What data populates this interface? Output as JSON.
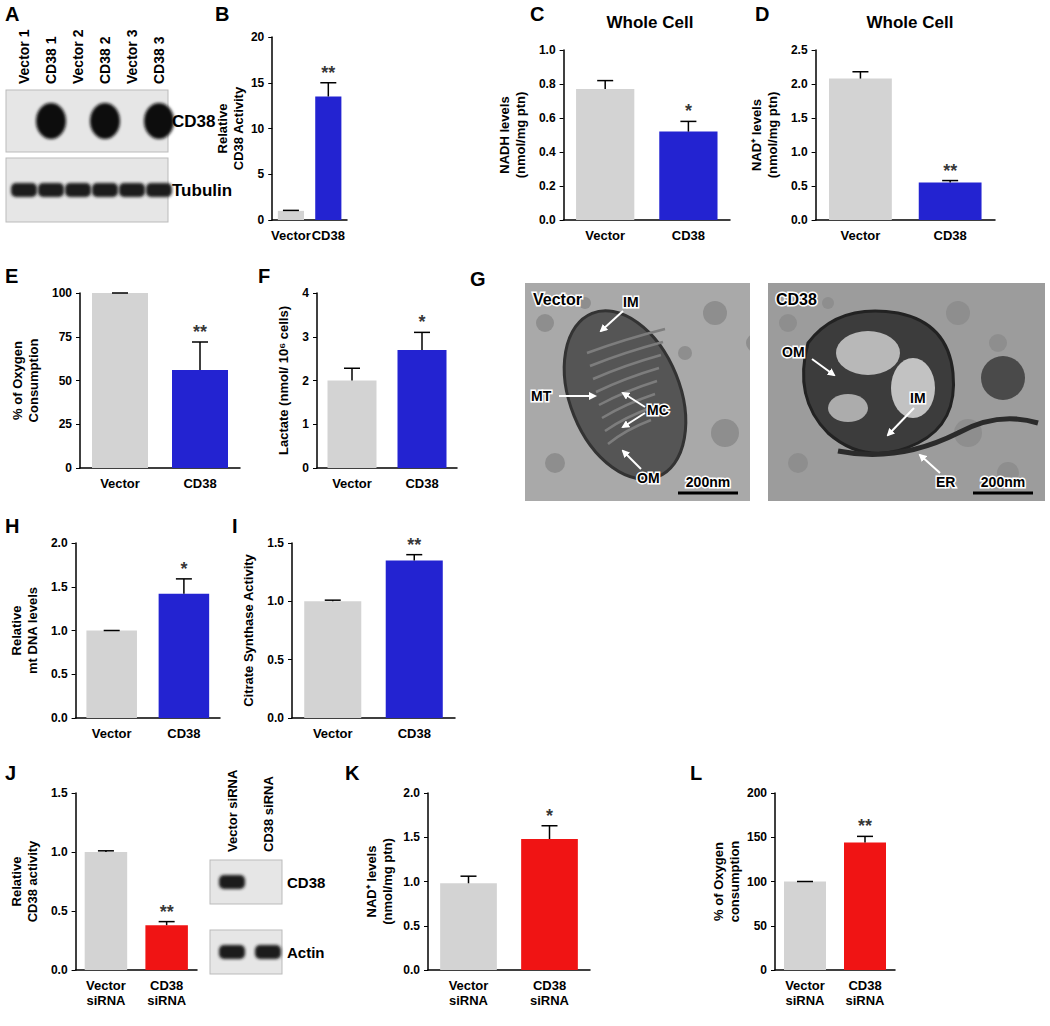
{
  "chart_data": [
    {
      "type": "bar",
      "panel": "B",
      "ylabel": "Relative\nCD38 Activity",
      "categories": [
        "Vector",
        "CD38"
      ],
      "values": [
        1,
        13.5
      ],
      "errors": [
        0.05,
        1.5
      ],
      "colors": [
        "#d3d3d3",
        "#2323d1"
      ],
      "ylim": [
        0,
        20
      ],
      "yticks": [
        0,
        5,
        10,
        15,
        20
      ],
      "grid": false,
      "annotations": [
        {
          "category": "CD38",
          "text": "**"
        }
      ]
    },
    {
      "type": "bar",
      "panel": "C",
      "title": "Whole Cell",
      "ylabel": "NADH levels\n(nmol/mg ptn)",
      "categories": [
        "Vector",
        "CD38"
      ],
      "values": [
        0.77,
        0.52
      ],
      "errors": [
        0.05,
        0.06
      ],
      "colors": [
        "#d3d3d3",
        "#2323d1"
      ],
      "ylim": [
        0,
        1
      ],
      "yticks": [
        {
          "value": 0,
          "label": "0.0"
        },
        0.2,
        0.4,
        0.6,
        0.8,
        {
          "value": 1,
          "label": "1.0"
        }
      ],
      "grid": false,
      "annotations": [
        {
          "category": "CD38",
          "text": "*"
        }
      ]
    },
    {
      "type": "bar",
      "panel": "D",
      "title": "Whole Cell",
      "ylabel": "NAD⁺ levels\n(nmol/mg ptn)",
      "categories": [
        "Vector",
        "CD38"
      ],
      "values": [
        2.08,
        0.55
      ],
      "errors": [
        0.1,
        0.03
      ],
      "colors": [
        "#d3d3d3",
        "#2323d1"
      ],
      "ylim": [
        0,
        2.5
      ],
      "yticks": [
        {
          "value": 0,
          "label": "0.0"
        },
        0.5,
        {
          "value": 1,
          "label": "1.0"
        },
        1.5,
        {
          "value": 2,
          "label": "2.0"
        },
        2.5
      ],
      "grid": false,
      "annotations": [
        {
          "category": "CD38",
          "text": "**"
        }
      ]
    },
    {
      "type": "bar",
      "panel": "E",
      "ylabel": "% of Oxygen\nConsumption",
      "categories": [
        "Vector",
        "CD38"
      ],
      "values": [
        100,
        56
      ],
      "errors": [
        0,
        16
      ],
      "colors": [
        "#d3d3d3",
        "#2323d1"
      ],
      "ylim": [
        0,
        100
      ],
      "yticks": [
        0,
        25,
        50,
        75,
        100
      ],
      "grid": false,
      "annotations": [
        {
          "category": "CD38",
          "text": "**"
        }
      ]
    },
    {
      "type": "bar",
      "panel": "F",
      "ylabel": "Lactate (nmol/ 10⁶ cells)",
      "categories": [
        "Vector",
        "CD38"
      ],
      "values": [
        2.0,
        2.7
      ],
      "errors": [
        0.28,
        0.4
      ],
      "colors": [
        "#d3d3d3",
        "#2323d1"
      ],
      "ylim": [
        0,
        4
      ],
      "yticks": [
        0,
        1,
        2,
        3,
        4
      ],
      "grid": false,
      "annotations": [
        {
          "category": "CD38",
          "text": "*"
        }
      ]
    },
    {
      "type": "bar",
      "panel": "H",
      "ylabel": "Relative\nmt DNA levels",
      "categories": [
        "Vector",
        "CD38"
      ],
      "values": [
        1,
        1.42
      ],
      "errors": [
        0,
        0.17
      ],
      "colors": [
        "#d3d3d3",
        "#2323d1"
      ],
      "ylim": [
        0,
        2
      ],
      "yticks": [
        {
          "value": 0,
          "label": "0.0"
        },
        0.5,
        {
          "value": 1,
          "label": "1.0"
        },
        1.5,
        {
          "value": 2,
          "label": "2.0"
        }
      ],
      "grid": false,
      "annotations": [
        {
          "category": "CD38",
          "text": "*"
        }
      ]
    },
    {
      "type": "bar",
      "panel": "I",
      "ylabel": "Citrate Synthase Activity",
      "categories": [
        "Vector",
        "CD38"
      ],
      "values": [
        1,
        1.35
      ],
      "errors": [
        0.01,
        0.05
      ],
      "colors": [
        "#d3d3d3",
        "#2323d1"
      ],
      "ylim": [
        0,
        1.5
      ],
      "yticks": [
        {
          "value": 0,
          "label": "0.0"
        },
        0.5,
        {
          "value": 1,
          "label": "1.0"
        },
        1.5
      ],
      "grid": false,
      "annotations": [
        {
          "category": "CD38",
          "text": "**"
        }
      ]
    },
    {
      "type": "bar",
      "panel": "J",
      "ylabel": "Relative\nCD38 activity",
      "categories": [
        "Vector\nsiRNA",
        "CD38\nsiRNA"
      ],
      "values": [
        1,
        0.38
      ],
      "errors": [
        0.01,
        0.03
      ],
      "colors": [
        "#d3d3d3",
        "#f01414"
      ],
      "ylim": [
        0,
        1.5
      ],
      "yticks": [
        {
          "value": 0,
          "label": "0.0"
        },
        0.5,
        {
          "value": 1,
          "label": "1.0"
        },
        1.5
      ],
      "grid": false,
      "annotations": [
        {
          "category": "CD38\nsiRNA",
          "text": "**"
        }
      ]
    },
    {
      "type": "bar",
      "panel": "K",
      "ylabel": "NAD⁺ levels\n(nmol/mg ptn)",
      "categories": [
        "Vector\nsiRNA",
        "CD38\nsiRNA"
      ],
      "values": [
        0.98,
        1.48
      ],
      "errors": [
        0.08,
        0.15
      ],
      "colors": [
        "#d3d3d3",
        "#f01414"
      ],
      "ylim": [
        0,
        2
      ],
      "yticks": [
        {
          "value": 0,
          "label": "0.0"
        },
        0.5,
        {
          "value": 1,
          "label": "1.0"
        },
        1.5,
        {
          "value": 2,
          "label": "2.0"
        }
      ],
      "grid": false,
      "annotations": [
        {
          "category": "CD38\nsiRNA",
          "text": "*"
        }
      ]
    },
    {
      "type": "bar",
      "panel": "L",
      "ylabel": "% of Oxygen\nconsumption",
      "categories": [
        "Vector\nsiRNA",
        "CD38\nsiRNA"
      ],
      "values": [
        100,
        144
      ],
      "errors": [
        0,
        7
      ],
      "colors": [
        "#d3d3d3",
        "#f01414"
      ],
      "ylim": [
        0,
        200
      ],
      "yticks": [
        0,
        50,
        100,
        150,
        200
      ],
      "grid": false,
      "annotations": [
        {
          "category": "CD38\nsiRNA",
          "text": "**"
        }
      ]
    }
  ],
  "blots": [
    {
      "panel": "A",
      "lanes": [
        "Vector 1",
        "CD38 1",
        "Vector 2",
        "CD38 2",
        "Vector 3",
        "CD38 3"
      ],
      "rows": [
        {
          "label": "CD38",
          "bands": [
            false,
            true,
            false,
            true,
            false,
            true
          ]
        },
        {
          "label": "Tubulin",
          "bands": [
            true,
            true,
            true,
            true,
            true,
            true
          ]
        }
      ]
    },
    {
      "lanes": [
        "Vector siRNA",
        "CD38 siRNA"
      ],
      "rows": [
        {
          "label": "CD38",
          "bands": [
            true,
            false
          ]
        },
        {
          "label": "Actin",
          "bands": [
            true,
            true
          ]
        }
      ]
    }
  ],
  "micrographs": {
    "panel": "G",
    "images": [
      {
        "title": "Vector",
        "labels": [
          "IM",
          "MT",
          "MC",
          "OM"
        ],
        "scale_bar": "200nm"
      },
      {
        "title": "CD38",
        "labels": [
          "OM",
          "IM",
          "ER"
        ],
        "scale_bar": "200nm"
      }
    ]
  }
}
